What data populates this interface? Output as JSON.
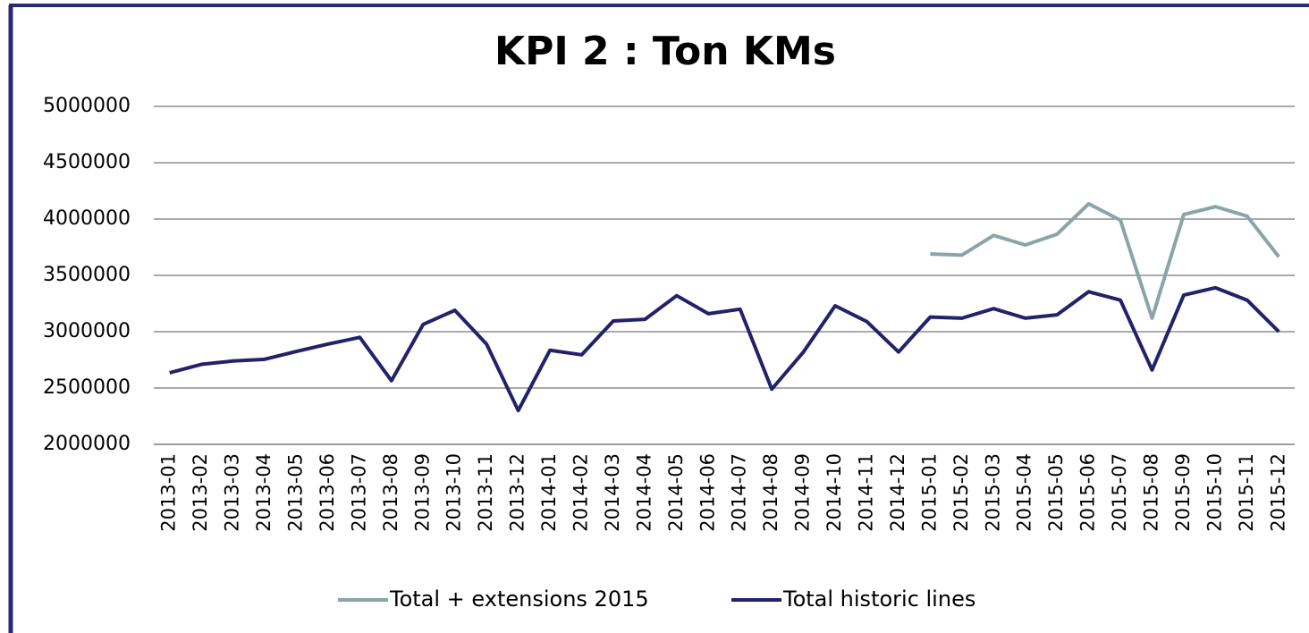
{
  "chart_data": {
    "type": "line",
    "title": "KPI 2 : Ton KMs",
    "categories": [
      "2013-01",
      "2013-02",
      "2013-03",
      "2013-04",
      "2013-05",
      "2013-06",
      "2013-07",
      "2013-08",
      "2013-09",
      "2013-10",
      "2013-11",
      "2013-12",
      "2014-01",
      "2014-02",
      "2014-03",
      "2014-04",
      "2014-05",
      "2014-06",
      "2014-07",
      "2014-08",
      "2014-09",
      "2014-10",
      "2014-11",
      "2014-12",
      "2015-01",
      "2015-02",
      "2015-03",
      "2015-04",
      "2015-05",
      "2015-06",
      "2015-07",
      "2015-08",
      "2015-09",
      "2015-10",
      "2015-11",
      "2015-12"
    ],
    "series": [
      {
        "name": "Total + extensions 2015",
        "color": "#8aa5a7",
        "values": [
          null,
          null,
          null,
          null,
          null,
          null,
          null,
          null,
          null,
          null,
          null,
          null,
          null,
          null,
          null,
          null,
          null,
          null,
          null,
          null,
          null,
          null,
          null,
          null,
          3690000,
          3680000,
          3855000,
          3770000,
          3865000,
          4135000,
          3990000,
          3120000,
          4040000,
          4110000,
          4025000,
          3665000
        ]
      },
      {
        "name": "Total historic lines",
        "color": "#22226b",
        "values": [
          2635000,
          2710000,
          2740000,
          2755000,
          2825000,
          2890000,
          2950000,
          2565000,
          3065000,
          3190000,
          2890000,
          2300000,
          2835000,
          2795000,
          3095000,
          3110000,
          3320000,
          3160000,
          3200000,
          2490000,
          2820000,
          3230000,
          3090000,
          2820000,
          3130000,
          3120000,
          3205000,
          3120000,
          3150000,
          3355000,
          3280000,
          2660000,
          3325000,
          3390000,
          3280000,
          3000000
        ]
      }
    ],
    "ylim": [
      2000000,
      5000000
    ],
    "yticks": [
      2000000,
      2500000,
      3000000,
      3500000,
      4000000,
      4500000,
      5000000
    ],
    "grid": true,
    "legend": "bottom"
  }
}
